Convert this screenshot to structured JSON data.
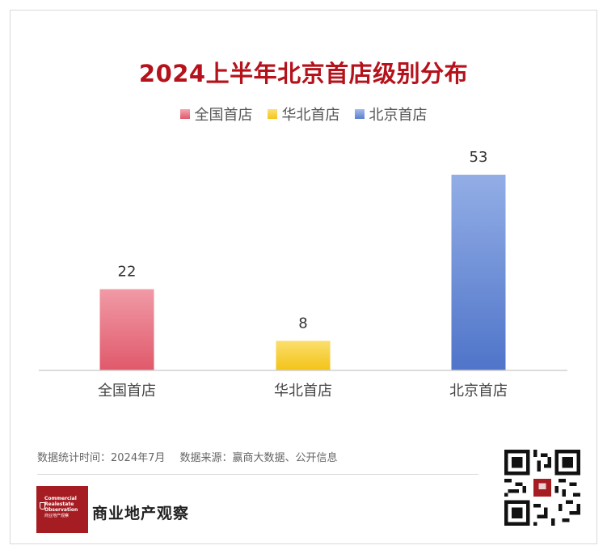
{
  "chart_data": {
    "type": "bar",
    "title": "2024上半年北京首店级别分布",
    "categories": [
      "全国首店",
      "华北首店",
      "北京首店"
    ],
    "values": [
      22,
      8,
      53
    ],
    "colors": [
      "#e0596b",
      "#f5c518",
      "#5b80cf"
    ],
    "ylim": [
      0,
      53
    ],
    "legend_position": "top-center",
    "grid": false
  },
  "footer": {
    "stat_time": "数据统计时间：2024年7月",
    "source": "数据来源：赢商大数据、公开信息"
  },
  "brand": {
    "logo_text": "Commercial Realestate Observation 商业地产观察",
    "name": "商业地产观察"
  }
}
